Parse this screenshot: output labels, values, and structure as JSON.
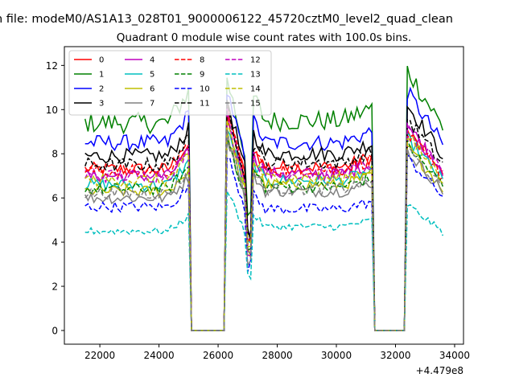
{
  "chart_data": {
    "type": "line",
    "suptitle": "n file: modeM0/AS1A13_028T01_9000006122_45720cztM0_level2_quad_clean",
    "title": "Quadrant 0 module wise count rates with 100.0s bins.",
    "xlabel": "",
    "ylabel": "",
    "offset_label": "+4.479e8",
    "xlim": [
      20800,
      34300
    ],
    "ylim": [
      -0.62,
      12.85
    ],
    "xticks": [
      22000,
      24000,
      26000,
      28000,
      30000,
      32000,
      34000
    ],
    "xtick_labels": [
      "22000",
      "24000",
      "26000",
      "28000",
      "30000",
      "32000",
      "34000"
    ],
    "yticks": [
      0,
      2,
      4,
      6,
      8,
      10,
      12
    ],
    "ytick_labels": [
      "0",
      "2",
      "4",
      "6",
      "8",
      "10",
      "12"
    ],
    "grid": false,
    "legend_position": "top-left",
    "legend_columns": 4,
    "segments": [
      {
        "start": 21500,
        "end": 25000
      },
      {
        "start": 26300,
        "end": 27000
      },
      {
        "start": 27100,
        "end": 31200
      },
      {
        "start": 32400,
        "end": 33600
      }
    ],
    "gaps": [
      {
        "start": 25100,
        "end": 26200
      },
      {
        "start": 31200,
        "end": 32300
      }
    ],
    "series": [
      {
        "name": "0",
        "color": "#ff0000",
        "style": "solid",
        "levels": [
          7.3,
          10.0,
          7.4,
          9.0
        ],
        "noise": 0.3
      },
      {
        "name": "1",
        "color": "#008000",
        "style": "solid",
        "levels": [
          9.4,
          11.5,
          9.5,
          11.8
        ],
        "noise": 0.35
      },
      {
        "name": "2",
        "color": "#0000ff",
        "style": "solid",
        "levels": [
          8.5,
          11.0,
          8.5,
          10.8
        ],
        "noise": 0.3
      },
      {
        "name": "3",
        "color": "#000000",
        "style": "solid",
        "levels": [
          7.9,
          10.5,
          8.0,
          10.2
        ],
        "noise": 0.3
      },
      {
        "name": "4",
        "color": "#bf00bf",
        "style": "solid",
        "levels": [
          7.0,
          9.8,
          7.1,
          9.3
        ],
        "noise": 0.3
      },
      {
        "name": "5",
        "color": "#00bfbf",
        "style": "solid",
        "levels": [
          6.6,
          9.3,
          6.8,
          8.7
        ],
        "noise": 0.3
      },
      {
        "name": "6",
        "color": "#bfbf00",
        "style": "solid",
        "levels": [
          6.3,
          9.0,
          6.6,
          8.3
        ],
        "noise": 0.3
      },
      {
        "name": "7",
        "color": "#808080",
        "style": "solid",
        "levels": [
          6.0,
          8.8,
          6.3,
          8.1
        ],
        "noise": 0.3
      },
      {
        "name": "8",
        "color": "#ff0000",
        "style": "dashed",
        "levels": [
          7.2,
          9.9,
          7.3,
          8.9
        ],
        "noise": 0.3
      },
      {
        "name": "9",
        "color": "#008000",
        "style": "dashed",
        "levels": [
          6.4,
          8.8,
          6.5,
          8.4
        ],
        "noise": 0.3
      },
      {
        "name": "10",
        "color": "#0000ff",
        "style": "dashed",
        "levels": [
          5.6,
          8.0,
          5.5,
          7.8
        ],
        "noise": 0.3
      },
      {
        "name": "11",
        "color": "#000000",
        "style": "dashed",
        "levels": [
          7.5,
          10.2,
          7.6,
          9.6
        ],
        "noise": 0.3
      },
      {
        "name": "12",
        "color": "#bf00bf",
        "style": "dashed",
        "levels": [
          7.0,
          9.6,
          7.1,
          9.1
        ],
        "noise": 0.3
      },
      {
        "name": "13",
        "color": "#00bfbf",
        "style": "dashed",
        "levels": [
          4.5,
          6.4,
          4.7,
          5.7
        ],
        "noise": 0.25
      },
      {
        "name": "14",
        "color": "#bfbf00",
        "style": "dashed",
        "levels": [
          6.8,
          9.4,
          6.9,
          8.8
        ],
        "noise": 0.3
      },
      {
        "name": "15",
        "color": "#808080",
        "style": "dashed",
        "levels": [
          6.2,
          8.9,
          6.4,
          8.2
        ],
        "noise": 0.3
      }
    ]
  }
}
